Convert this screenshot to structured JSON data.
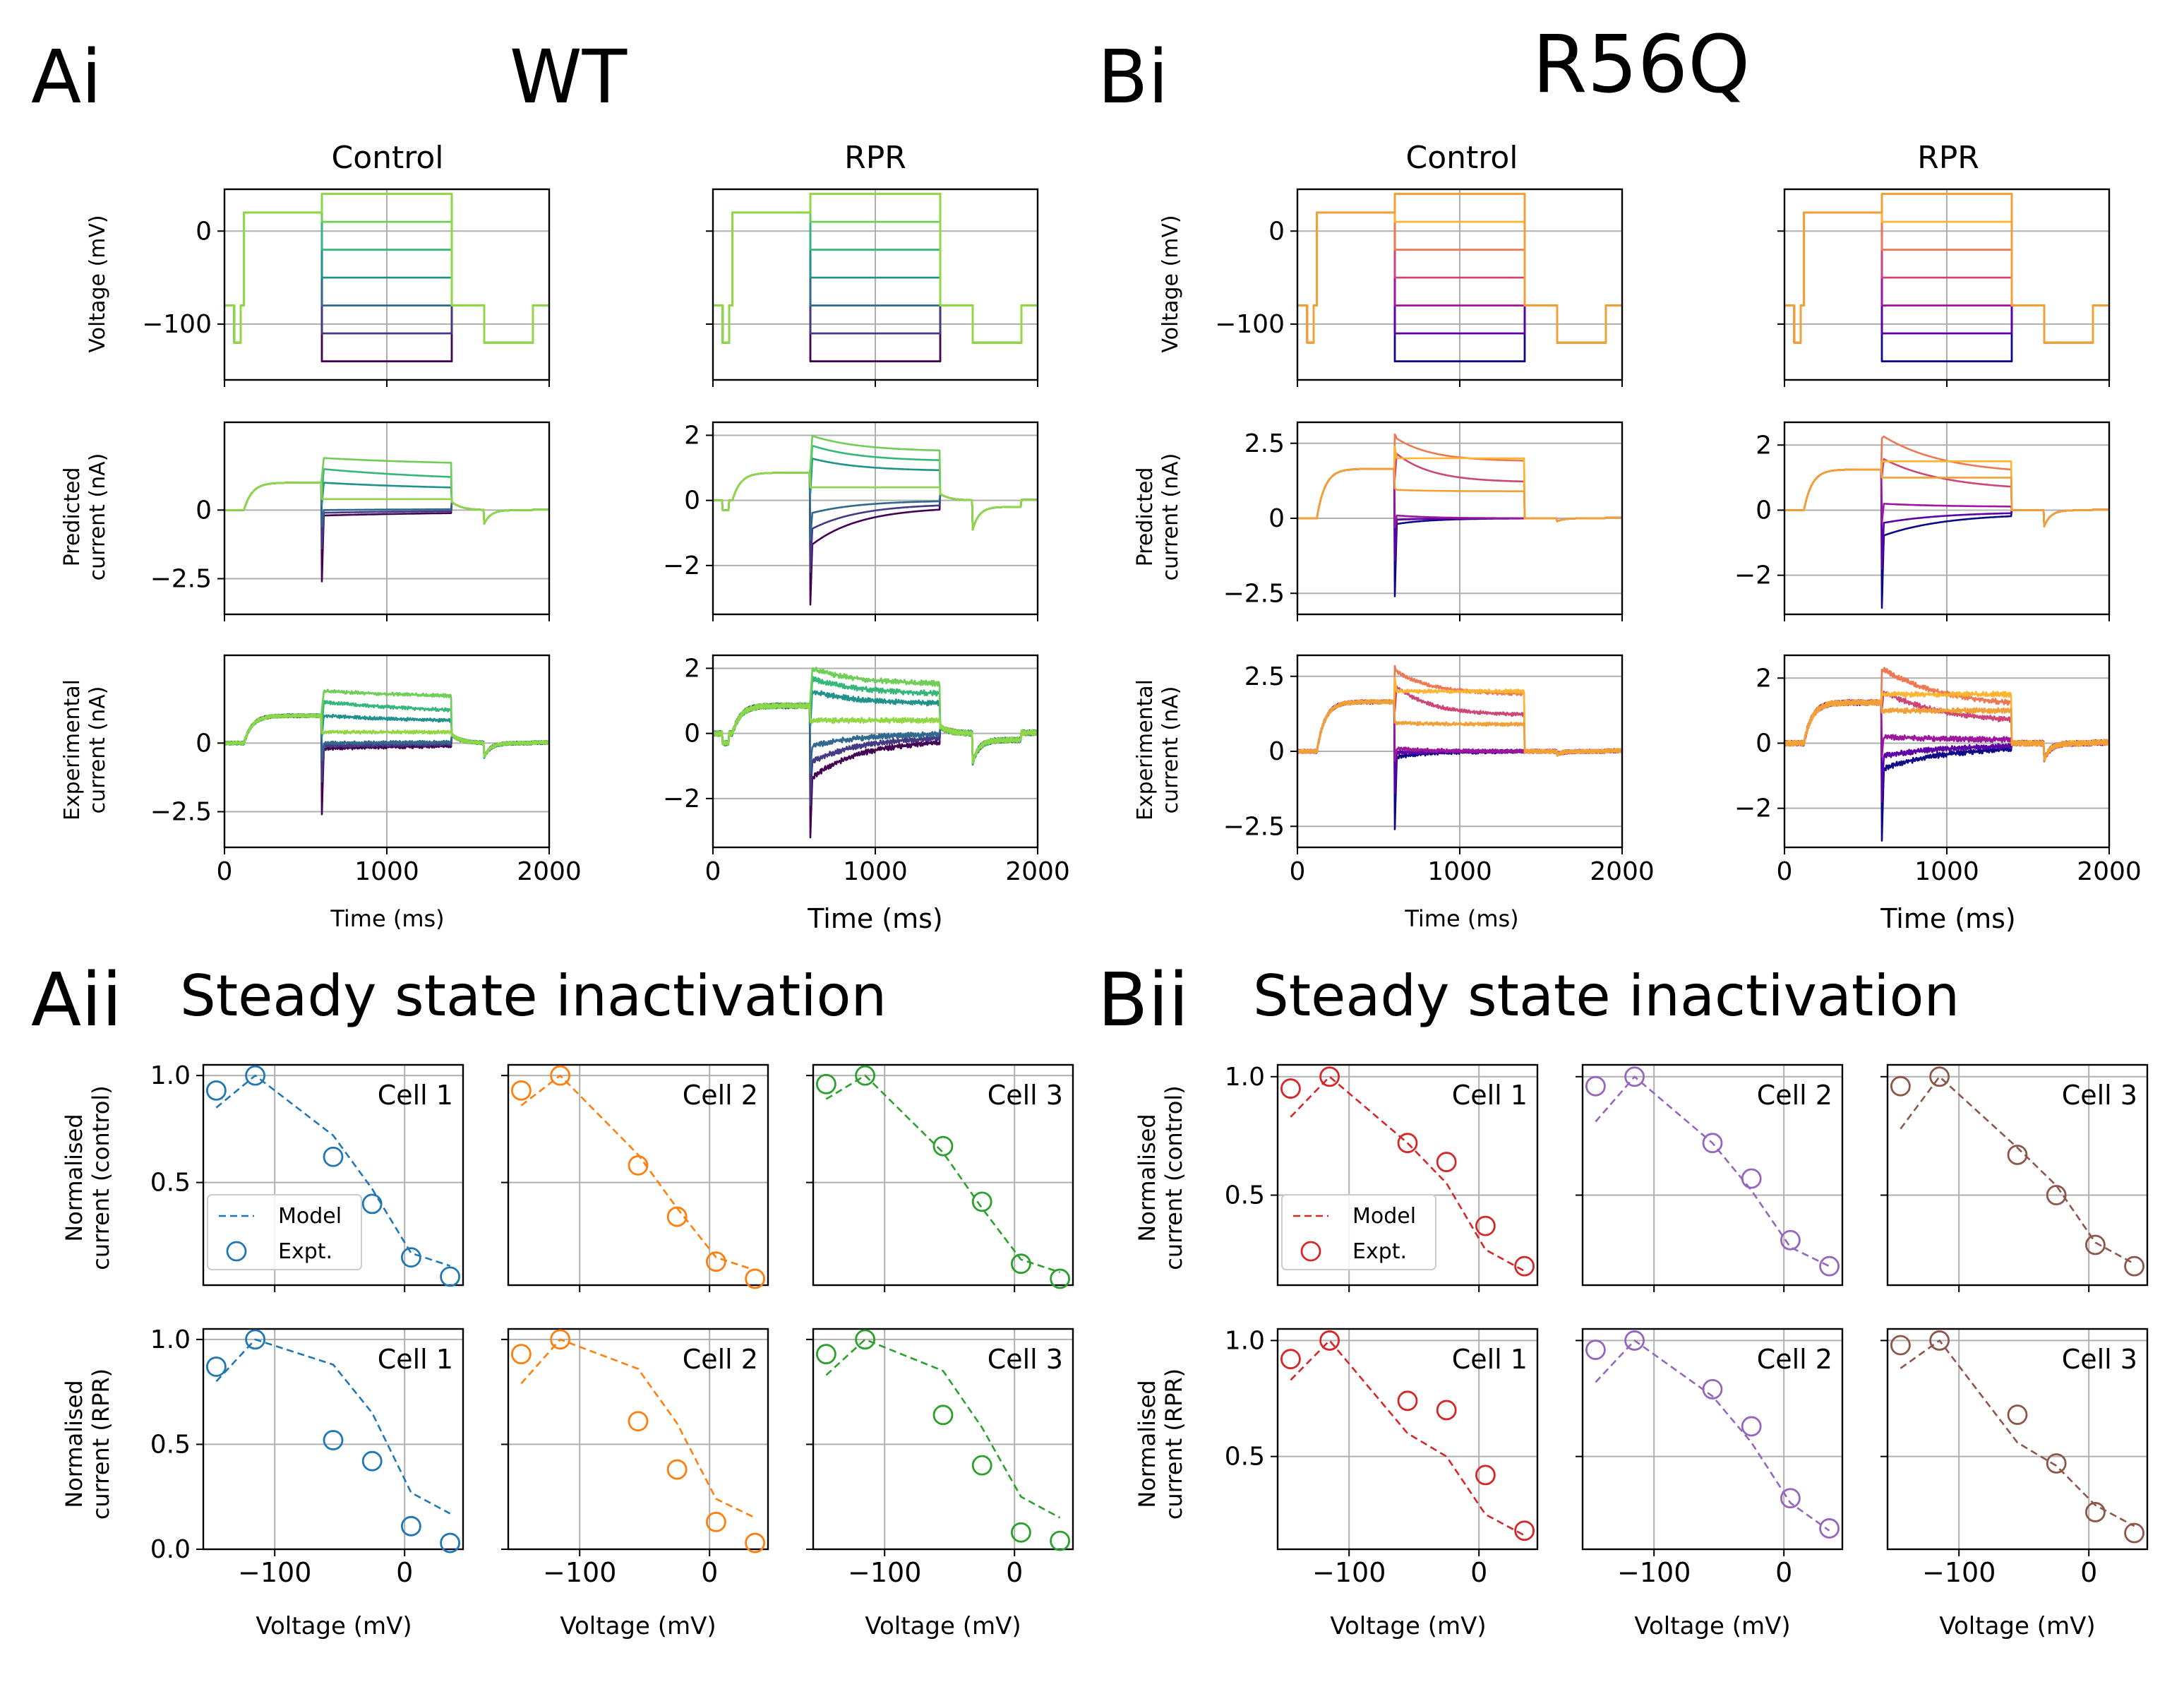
{
  "figure": {
    "panel_labels": {
      "ai": "Ai",
      "bi": "Bi",
      "aii": "Aii",
      "bii": "Bii"
    },
    "titles": {
      "wt": "WT",
      "r56q": "R56Q",
      "ssi_a": "Steady state inactivation",
      "ssi_b": "Steady state inactivation"
    },
    "col_titles": {
      "control": "Control",
      "rpr": "RPR"
    },
    "ylabels": {
      "voltage": "Voltage (mV)",
      "predicted": [
        "Predicted",
        "current (nA)"
      ],
      "experimental": [
        "Experimental",
        "current (nA)"
      ],
      "norm_control": [
        "Normalised",
        "current (control)"
      ],
      "norm_rpr": [
        "Normalised",
        "current (RPR)"
      ]
    },
    "xlabels": {
      "time": "Time (ms)",
      "voltage": "Voltage (mV)"
    },
    "legend": {
      "model": "Model",
      "expt": "Expt."
    },
    "cell_labels": [
      "Cell 1",
      "Cell 2",
      "Cell 3"
    ]
  },
  "colors": {
    "viridis": [
      "#440154",
      "#3b528b",
      "#21918c",
      "#5ec962",
      "#2a788e",
      "#22a884",
      "#7ad151",
      "#9fda3a"
    ],
    "plasma": [
      "#0d0887",
      "#6a00a8",
      "#b12a90",
      "#e16462",
      "#fca636",
      "#f0a035",
      "#d8576b",
      "#9c179e"
    ],
    "cells_wt": [
      "#1f77b4",
      "#ff7f0e",
      "#2ca02c"
    ],
    "cells_r56q": [
      "#d62728",
      "#9467bd",
      "#8c564b"
    ],
    "grid": "#b0b0b0"
  },
  "chart_data": [
    {
      "id": "voltage_protocol",
      "type": "line",
      "xlabel": "Time (ms)",
      "ylabel": "Voltage (mV)",
      "xlim": [
        0,
        2000
      ],
      "ylim": [
        -160,
        45
      ],
      "yticks": [
        0,
        -100
      ],
      "protocol_ms": [
        [
          0,
          -80
        ],
        [
          60,
          -120
        ],
        [
          100,
          -80
        ],
        [
          120,
          20
        ],
        [
          600,
          "step"
        ],
        [
          1400,
          -80
        ],
        [
          1600,
          -120
        ],
        [
          1900,
          -80
        ],
        [
          2000,
          -80
        ]
      ],
      "step_levels_mV": [
        -140,
        -110,
        -80,
        -50,
        -20,
        10,
        40
      ]
    },
    {
      "id": "current_traces",
      "type": "line",
      "xlabel": "Time (ms)",
      "xlim": [
        0,
        2000
      ],
      "xticks": [
        0,
        1000,
        2000
      ],
      "panels": {
        "wt_control_pred": {
          "ylim": [
            -3.8,
            3.2
          ],
          "yticks": [
            0.0,
            -2.5
          ]
        },
        "wt_rpr_pred": {
          "ylim": [
            -3.5,
            2.4
          ],
          "yticks": [
            2,
            0,
            -2
          ]
        },
        "wt_control_expt": {
          "ylim": [
            -3.8,
            3.2
          ],
          "yticks": [
            0.0,
            -2.5
          ]
        },
        "wt_rpr_expt": {
          "ylim": [
            -3.5,
            2.4
          ],
          "yticks": [
            2,
            0,
            -2
          ]
        },
        "r56q_control_pred": {
          "ylim": [
            -3.2,
            3.2
          ],
          "yticks": [
            2.5,
            0.0,
            -2.5
          ]
        },
        "r56q_rpr_pred": {
          "ylim": [
            -3.2,
            2.7
          ],
          "yticks": [
            2,
            0,
            -2
          ]
        },
        "r56q_control_expt": {
          "ylim": [
            -3.2,
            3.2
          ],
          "yticks": [
            2.5,
            0.0,
            -2.5
          ]
        },
        "r56q_rpr_expt": {
          "ylim": [
            -3.2,
            2.7
          ],
          "yticks": [
            2,
            0,
            -2
          ]
        }
      }
    },
    {
      "id": "steady_state_inactivation",
      "type": "scatter",
      "xlabel": "Voltage (mV)",
      "xlim": [
        -155,
        45
      ],
      "xticks": [
        -100,
        0
      ],
      "x": [
        -145,
        -115,
        -55,
        -25,
        5,
        35
      ],
      "wt": {
        "control": [
          {
            "name": "Cell 1",
            "expt": [
              0.93,
              1.0,
              0.62,
              0.4,
              0.15,
              0.06
            ],
            "model": [
              0.85,
              1.0,
              0.72,
              0.47,
              0.17,
              0.11
            ]
          },
          {
            "name": "Cell 2",
            "expt": [
              0.93,
              1.0,
              0.58,
              0.34,
              0.13,
              0.05
            ],
            "model": [
              0.86,
              1.0,
              0.63,
              0.38,
              0.15,
              0.09
            ]
          },
          {
            "name": "Cell 3",
            "expt": [
              0.96,
              1.0,
              0.67,
              0.41,
              0.12,
              0.05
            ],
            "model": [
              0.89,
              1.0,
              0.64,
              0.38,
              0.14,
              0.08
            ]
          }
        ],
        "rpr": [
          {
            "name": "Cell 1",
            "expt": [
              0.87,
              1.0,
              0.52,
              0.42,
              0.11,
              0.03
            ],
            "model": [
              0.8,
              1.0,
              0.88,
              0.65,
              0.27,
              0.17
            ]
          },
          {
            "name": "Cell 2",
            "expt": [
              0.93,
              1.0,
              0.61,
              0.38,
              0.13,
              0.03
            ],
            "model": [
              0.79,
              1.0,
              0.86,
              0.6,
              0.24,
              0.15
            ]
          },
          {
            "name": "Cell 3",
            "expt": [
              0.93,
              1.0,
              0.64,
              0.4,
              0.08,
              0.04
            ],
            "model": [
              0.83,
              1.0,
              0.85,
              0.58,
              0.25,
              0.15
            ]
          }
        ]
      },
      "r56q": {
        "control": [
          {
            "name": "Cell 1",
            "expt": [
              0.95,
              1.0,
              0.72,
              0.64,
              0.37,
              0.2
            ],
            "model": [
              0.83,
              1.0,
              0.72,
              0.55,
              0.27,
              0.18
            ]
          },
          {
            "name": "Cell 2",
            "expt": [
              0.96,
              1.0,
              0.72,
              0.57,
              0.31,
              0.2
            ],
            "model": [
              0.81,
              1.0,
              0.72,
              0.52,
              0.28,
              0.2
            ]
          },
          {
            "name": "Cell 3",
            "expt": [
              0.96,
              1.0,
              0.67,
              0.5,
              0.29,
              0.2
            ],
            "model": [
              0.78,
              1.0,
              0.7,
              0.54,
              0.3,
              0.21
            ]
          }
        ],
        "rpr": [
          {
            "name": "Cell 1",
            "expt": [
              0.92,
              1.0,
              0.74,
              0.7,
              0.42,
              0.18
            ],
            "model": [
              0.83,
              1.0,
              0.6,
              0.5,
              0.25,
              0.16
            ]
          },
          {
            "name": "Cell 2",
            "expt": [
              0.96,
              1.0,
              0.79,
              0.63,
              0.32,
              0.19
            ],
            "model": [
              0.82,
              1.0,
              0.76,
              0.56,
              0.3,
              0.18
            ]
          },
          {
            "name": "Cell 3",
            "expt": [
              0.98,
              1.0,
              0.68,
              0.47,
              0.26,
              0.17
            ],
            "model": [
              0.88,
              1.0,
              0.56,
              0.46,
              0.29,
              0.2
            ]
          }
        ]
      },
      "ylim_wt": [
        0.0,
        1.05
      ],
      "ylim_r56q": [
        0.1,
        1.05
      ]
    }
  ]
}
